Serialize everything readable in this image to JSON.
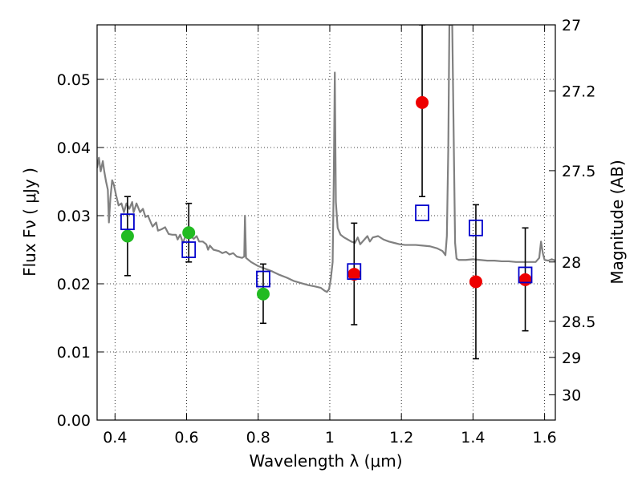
{
  "chart_data": {
    "type": "scatter",
    "title": "",
    "xlabel": "Wavelength  λ (μm)",
    "ylabel": "Flux  Fν  ( μJy )",
    "y2label": "Magnitude (AB)",
    "xlim": [
      0.35,
      1.63
    ],
    "ylim": [
      0.0,
      0.058
    ],
    "grid": true,
    "x_ticks": [
      0.4,
      0.6,
      0.8,
      1.0,
      1.2,
      1.4,
      1.6
    ],
    "x_tick_labels": [
      "0.4",
      "0.6",
      "0.8",
      "1",
      "1.2",
      "1.4",
      "1.6"
    ],
    "y_ticks": [
      0.0,
      0.01,
      0.02,
      0.03,
      0.04,
      0.05
    ],
    "y_tick_labels": [
      "0.00",
      "0.01",
      "0.02",
      "0.03",
      "0.04",
      "0.05"
    ],
    "y2_ticks": [
      {
        "label": "27",
        "flux": 0.058
      },
      {
        "label": "27.2",
        "flux": 0.0483
      },
      {
        "label": "27.5",
        "flux": 0.0366
      },
      {
        "label": "28",
        "flux": 0.0232
      },
      {
        "label": "28.5",
        "flux": 0.0145
      },
      {
        "label": "29",
        "flux": 0.0092
      },
      {
        "label": "30",
        "flux": 0.0037
      }
    ],
    "series": [
      {
        "marker": "circle",
        "color": "#22bb22",
        "points": [
          {
            "x": 0.435,
            "y": 0.027,
            "ylo": 0.0212,
            "yhi": 0.0328
          },
          {
            "x": 0.606,
            "y": 0.0275,
            "ylo": 0.0232,
            "yhi": 0.0318
          },
          {
            "x": 0.814,
            "y": 0.0185,
            "ylo": 0.0142,
            "yhi": 0.0229
          }
        ]
      },
      {
        "marker": "circle",
        "color": "#ee0000",
        "points": [
          {
            "x": 1.068,
            "y": 0.0214,
            "ylo": 0.014,
            "yhi": 0.0289
          },
          {
            "x": 1.258,
            "y": 0.0466,
            "ylo": 0.0328,
            "yhi": 0.058
          },
          {
            "x": 1.408,
            "y": 0.0203,
            "ylo": 0.009,
            "yhi": 0.0316
          },
          {
            "x": 1.546,
            "y": 0.0206,
            "ylo": 0.0131,
            "yhi": 0.0282
          }
        ]
      },
      {
        "marker": "open-square",
        "color": "#0000cc",
        "points": [
          {
            "x": 0.435,
            "y": 0.0291
          },
          {
            "x": 0.606,
            "y": 0.025
          },
          {
            "x": 0.814,
            "y": 0.0207
          },
          {
            "x": 1.068,
            "y": 0.0218
          },
          {
            "x": 1.258,
            "y": 0.0304
          },
          {
            "x": 1.408,
            "y": 0.0282
          },
          {
            "x": 1.546,
            "y": 0.0213
          }
        ]
      }
    ],
    "model_spectrum": {
      "color": "#808080",
      "points": [
        [
          0.35,
          0.037
        ],
        [
          0.355,
          0.0385
        ],
        [
          0.36,
          0.0365
        ],
        [
          0.366,
          0.038
        ],
        [
          0.37,
          0.0365
        ],
        [
          0.375,
          0.035
        ],
        [
          0.38,
          0.0338
        ],
        [
          0.383,
          0.029
        ],
        [
          0.387,
          0.0325
        ],
        [
          0.392,
          0.0352
        ],
        [
          0.397,
          0.0345
        ],
        [
          0.403,
          0.033
        ],
        [
          0.41,
          0.0315
        ],
        [
          0.418,
          0.0318
        ],
        [
          0.425,
          0.0305
        ],
        [
          0.432,
          0.0318
        ],
        [
          0.44,
          0.031
        ],
        [
          0.448,
          0.032
        ],
        [
          0.452,
          0.0305
        ],
        [
          0.46,
          0.0318
        ],
        [
          0.47,
          0.0305
        ],
        [
          0.478,
          0.031
        ],
        [
          0.485,
          0.0298
        ],
        [
          0.492,
          0.03
        ],
        [
          0.5,
          0.029
        ],
        [
          0.505,
          0.0284
        ],
        [
          0.515,
          0.029
        ],
        [
          0.52,
          0.0278
        ],
        [
          0.53,
          0.028
        ],
        [
          0.54,
          0.0283
        ],
        [
          0.55,
          0.0273
        ],
        [
          0.56,
          0.0272
        ],
        [
          0.57,
          0.0272
        ],
        [
          0.575,
          0.0265
        ],
        [
          0.582,
          0.0272
        ],
        [
          0.59,
          0.026
        ],
        [
          0.6,
          0.0275
        ],
        [
          0.61,
          0.027
        ],
        [
          0.62,
          0.0266
        ],
        [
          0.628,
          0.027
        ],
        [
          0.635,
          0.0262
        ],
        [
          0.645,
          0.0262
        ],
        [
          0.655,
          0.0258
        ],
        [
          0.66,
          0.025
        ],
        [
          0.665,
          0.0256
        ],
        [
          0.675,
          0.025
        ],
        [
          0.69,
          0.0248
        ],
        [
          0.7,
          0.0245
        ],
        [
          0.71,
          0.0247
        ],
        [
          0.72,
          0.0243
        ],
        [
          0.73,
          0.0245
        ],
        [
          0.74,
          0.024
        ],
        [
          0.755,
          0.0238
        ],
        [
          0.761,
          0.024
        ],
        [
          0.763,
          0.03
        ],
        [
          0.766,
          0.0238
        ],
        [
          0.78,
          0.0232
        ],
        [
          0.8,
          0.0226
        ],
        [
          0.82,
          0.0222
        ],
        [
          0.84,
          0.0218
        ],
        [
          0.86,
          0.0213
        ],
        [
          0.88,
          0.0209
        ],
        [
          0.9,
          0.0204
        ],
        [
          0.92,
          0.0201
        ],
        [
          0.94,
          0.0198
        ],
        [
          0.96,
          0.0196
        ],
        [
          0.975,
          0.0194
        ],
        [
          0.985,
          0.019
        ],
        [
          0.992,
          0.0188
        ],
        [
          0.998,
          0.0192
        ],
        [
          1.003,
          0.0208
        ],
        [
          1.008,
          0.0232
        ],
        [
          1.011,
          0.035
        ],
        [
          1.014,
          0.051
        ],
        [
          1.017,
          0.032
        ],
        [
          1.022,
          0.0282
        ],
        [
          1.03,
          0.0272
        ],
        [
          1.04,
          0.0268
        ],
        [
          1.05,
          0.0265
        ],
        [
          1.06,
          0.0262
        ],
        [
          1.07,
          0.026
        ],
        [
          1.078,
          0.0268
        ],
        [
          1.085,
          0.0258
        ],
        [
          1.095,
          0.0264
        ],
        [
          1.105,
          0.027
        ],
        [
          1.112,
          0.0262
        ],
        [
          1.12,
          0.0268
        ],
        [
          1.135,
          0.027
        ],
        [
          1.15,
          0.0265
        ],
        [
          1.165,
          0.0262
        ],
        [
          1.18,
          0.026
        ],
        [
          1.195,
          0.0258
        ],
        [
          1.21,
          0.0257
        ],
        [
          1.225,
          0.0257
        ],
        [
          1.24,
          0.0257
        ],
        [
          1.26,
          0.0256
        ],
        [
          1.28,
          0.0255
        ],
        [
          1.3,
          0.0252
        ],
        [
          1.315,
          0.0248
        ],
        [
          1.323,
          0.0242
        ],
        [
          1.327,
          0.027
        ],
        [
          1.331,
          0.04
        ],
        [
          1.334,
          0.058
        ],
        [
          1.342,
          0.058
        ],
        [
          1.346,
          0.042
        ],
        [
          1.35,
          0.026
        ],
        [
          1.354,
          0.0237
        ],
        [
          1.36,
          0.0235
        ],
        [
          1.38,
          0.0235
        ],
        [
          1.4,
          0.0236
        ],
        [
          1.42,
          0.0235
        ],
        [
          1.44,
          0.0234
        ],
        [
          1.46,
          0.0234
        ],
        [
          1.48,
          0.0233
        ],
        [
          1.5,
          0.0233
        ],
        [
          1.52,
          0.0232
        ],
        [
          1.54,
          0.0232
        ],
        [
          1.56,
          0.0232
        ],
        [
          1.575,
          0.0232
        ],
        [
          1.585,
          0.0238
        ],
        [
          1.59,
          0.0262
        ],
        [
          1.595,
          0.0245
        ],
        [
          1.6,
          0.0235
        ],
        [
          1.61,
          0.0234
        ],
        [
          1.62,
          0.0236
        ],
        [
          1.63,
          0.0234
        ]
      ]
    }
  }
}
